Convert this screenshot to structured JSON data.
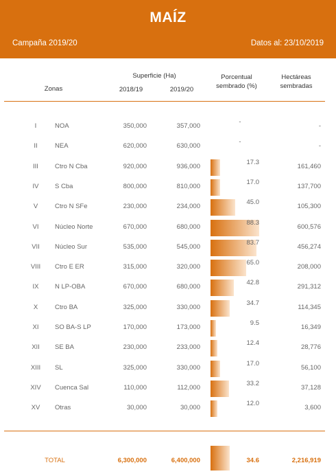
{
  "header": {
    "title": "MAÍZ",
    "campaign": "Campaña 2019/20",
    "date": "Datos al: 23/10/2019",
    "color": "#d8700f"
  },
  "columns": {
    "zonas": "Zonas",
    "superficie": "Superficie (Ha)",
    "year1": "2018/19",
    "year2": "2019/20",
    "porcentual": "Porcentual",
    "sembrado": "sembrado (%)",
    "hectareas": "Hectáreas",
    "sembradas": "sembradas"
  },
  "rows": [
    {
      "roman": "I",
      "zone": "NOA",
      "y1": "350,000",
      "y2": "357,000",
      "pct": "-",
      "pct_value": 0,
      "ha": "-"
    },
    {
      "roman": "II",
      "zone": "NEA",
      "y1": "620,000",
      "y2": "630,000",
      "pct": "-",
      "pct_value": 0,
      "ha": "-"
    },
    {
      "roman": "III",
      "zone": "Ctro N Cba",
      "y1": "920,000",
      "y2": "936,000",
      "pct": "17.3",
      "pct_value": 17.3,
      "ha": "161,460"
    },
    {
      "roman": "IV",
      "zone": "S Cba",
      "y1": "800,000",
      "y2": "810,000",
      "pct": "17.0",
      "pct_value": 17.0,
      "ha": "137,700"
    },
    {
      "roman": "V",
      "zone": "Ctro N SFe",
      "y1": "230,000",
      "y2": "234,000",
      "pct": "45.0",
      "pct_value": 45.0,
      "ha": "105,300"
    },
    {
      "roman": "VI",
      "zone": "Núcleo Norte",
      "y1": "670,000",
      "y2": "680,000",
      "pct": "88.3",
      "pct_value": 88.3,
      "ha": "600,576"
    },
    {
      "roman": "VII",
      "zone": "Núcleo Sur",
      "y1": "535,000",
      "y2": "545,000",
      "pct": "83.7",
      "pct_value": 83.7,
      "ha": "456,274"
    },
    {
      "roman": "VIII",
      "zone": "Ctro E ER",
      "y1": "315,000",
      "y2": "320,000",
      "pct": "65.0",
      "pct_value": 65.0,
      "ha": "208,000"
    },
    {
      "roman": "IX",
      "zone": "N LP-OBA",
      "y1": "670,000",
      "y2": "680,000",
      "pct": "42.8",
      "pct_value": 42.8,
      "ha": "291,312"
    },
    {
      "roman": "X",
      "zone": "Ctro BA",
      "y1": "325,000",
      "y2": "330,000",
      "pct": "34.7",
      "pct_value": 34.7,
      "ha": "114,345"
    },
    {
      "roman": "XI",
      "zone": "SO BA-S LP",
      "y1": "170,000",
      "y2": "173,000",
      "pct": "9.5",
      "pct_value": 9.5,
      "ha": "16,349"
    },
    {
      "roman": "XII",
      "zone": "SE BA",
      "y1": "230,000",
      "y2": "233,000",
      "pct": "12.4",
      "pct_value": 12.4,
      "ha": "28,776"
    },
    {
      "roman": "XIII",
      "zone": "SL",
      "y1": "325,000",
      "y2": "330,000",
      "pct": "17.0",
      "pct_value": 17.0,
      "ha": "56,100"
    },
    {
      "roman": "XIV",
      "zone": "Cuenca Sal",
      "y1": "110,000",
      "y2": "112,000",
      "pct": "33.2",
      "pct_value": 33.2,
      "ha": "37,128"
    },
    {
      "roman": "XV",
      "zone": "Otras",
      "y1": "30,000",
      "y2": "30,000",
      "pct": "12.0",
      "pct_value": 12.0,
      "ha": "3,600"
    }
  ],
  "total": {
    "label": "TOTAL",
    "y1": "6,300,000",
    "y2": "6,400,000",
    "pct": "34.6",
    "pct_value": 34.6,
    "ha": "2,216,919"
  }
}
